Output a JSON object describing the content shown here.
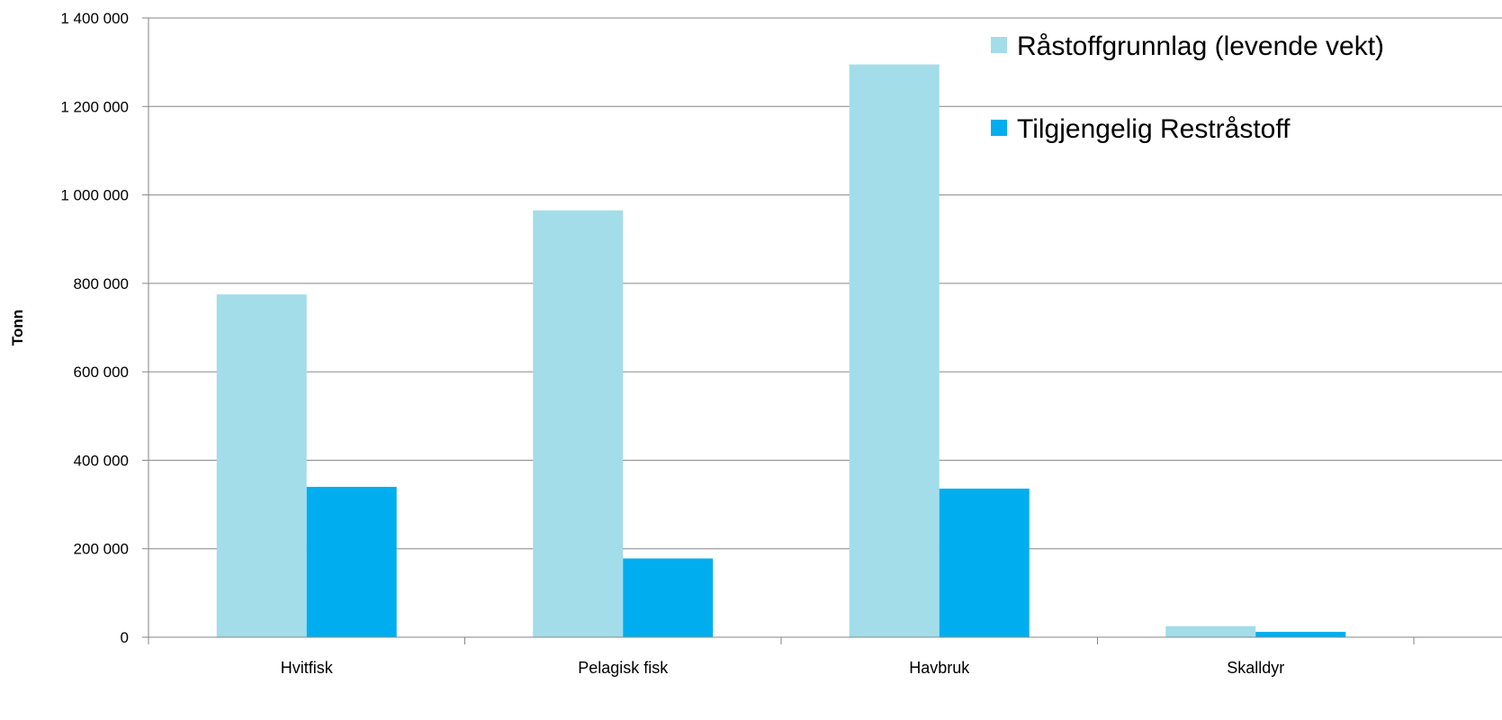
{
  "chart_data": {
    "type": "bar",
    "categories": [
      "Hvitfisk",
      "Pelagisk fisk",
      "Havbruk",
      "Skalldyr"
    ],
    "series": [
      {
        "name": "Råstoffgrunnlag (levende vekt)",
        "color": "#a2dde9",
        "values": [
          775000,
          965000,
          1295000,
          25000
        ]
      },
      {
        "name": "Tilgjengelig Restråstoff",
        "color": "#00aeef",
        "values": [
          340000,
          178000,
          336000,
          12000
        ]
      }
    ],
    "title": "",
    "xlabel": "",
    "ylabel": "Tonn",
    "ylim": [
      0,
      1400000
    ],
    "yticks": [
      0,
      200000,
      400000,
      600000,
      800000,
      1000000,
      1200000,
      1400000
    ],
    "ytick_labels": [
      "0",
      "200 000",
      "400 000",
      "600 000",
      "800 000",
      "1 000 000",
      "1 200 000",
      "1 400 000"
    ],
    "grid": true,
    "legend_position": "top-right"
  }
}
